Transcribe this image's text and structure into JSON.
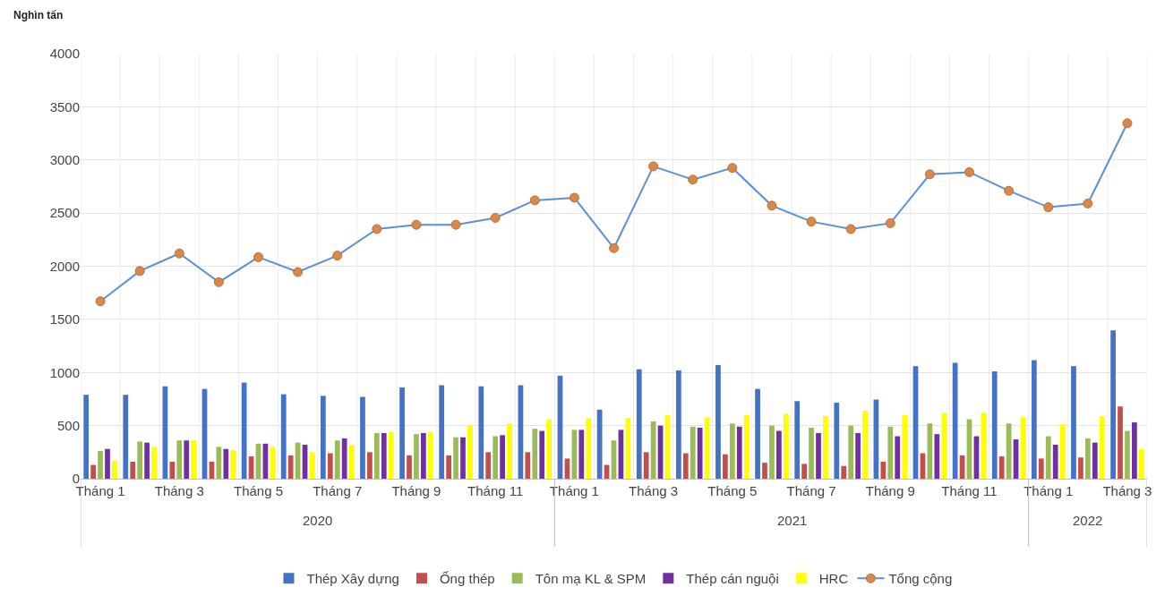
{
  "chart_data": {
    "type": "bar",
    "ylabel": "Nghìn tấn",
    "categories": [
      "Tháng 1",
      null,
      "Tháng 3",
      null,
      "Tháng 5",
      null,
      "Tháng 7",
      null,
      "Tháng 9",
      null,
      "Tháng 11",
      null,
      "Tháng 1",
      null,
      "Tháng 3",
      null,
      "Tháng 5",
      null,
      "Tháng 7",
      null,
      "Tháng 9",
      null,
      "Tháng 11",
      null,
      "Tháng 1",
      null,
      "Tháng 3"
    ],
    "series": [
      {
        "name": "Thép Xây dựng",
        "color": "#4472c4",
        "values": [
          790,
          790,
          870,
          845,
          905,
          795,
          780,
          770,
          860,
          880,
          870,
          880,
          970,
          650,
          1030,
          1020,
          1070,
          845,
          730,
          715,
          745,
          1060,
          1090,
          1010,
          1115,
          1060,
          1395
        ]
      },
      {
        "name": "Ống thép",
        "color": "#c0504d",
        "values": [
          130,
          160,
          160,
          160,
          210,
          220,
          240,
          250,
          220,
          220,
          250,
          250,
          190,
          130,
          250,
          240,
          230,
          150,
          140,
          120,
          160,
          240,
          220,
          210,
          190,
          200,
          680
        ]
      },
      {
        "name": "Tôn mạ KL & SPM",
        "color": "#9bbb59",
        "values": [
          260,
          350,
          360,
          300,
          330,
          340,
          360,
          430,
          420,
          390,
          400,
          470,
          460,
          360,
          540,
          490,
          520,
          500,
          480,
          500,
          490,
          520,
          560,
          520,
          400,
          380,
          450
        ]
      },
      {
        "name": "Thép cán nguội",
        "color": "#7030a0",
        "values": [
          280,
          340,
          360,
          280,
          330,
          320,
          380,
          430,
          430,
          390,
          410,
          450,
          460,
          460,
          500,
          480,
          490,
          450,
          430,
          430,
          400,
          420,
          400,
          370,
          320,
          340,
          530
        ]
      },
      {
        "name": "HRC",
        "color": "#ffff00",
        "values": [
          170,
          300,
          360,
          270,
          300,
          250,
          320,
          440,
          440,
          500,
          520,
          560,
          570,
          570,
          600,
          580,
          600,
          610,
          590,
          640,
          600,
          620,
          620,
          580,
          510,
          590,
          280
        ]
      },
      {
        "name": "Tổng cộng",
        "type": "line",
        "color": "#5b8fd6",
        "marker": "circle",
        "values": [
          1670,
          1955,
          2120,
          1850,
          2085,
          1945,
          2100,
          2350,
          2390,
          2390,
          2455,
          2620,
          2645,
          2170,
          2940,
          2815,
          2925,
          2570,
          2420,
          2350,
          2405,
          2865,
          2885,
          2710,
          2555,
          2590,
          3345
        ]
      }
    ],
    "annotations": [
      "2020",
      "2021",
      "2022"
    ],
    "ylim": [
      0,
      4000
    ],
    "yticks": [
      0,
      500,
      1000,
      1500,
      2000,
      2500,
      3000,
      3500,
      4000
    ],
    "grid": true,
    "legend": "bottom"
  }
}
